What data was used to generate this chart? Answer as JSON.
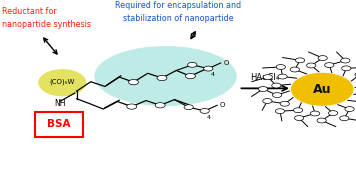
{
  "bg_color": "#ffffff",
  "red_label_line1": "Reductant for",
  "red_label_line2": "nanopartide synthesis",
  "blue_label_line1": "Required for encapsulation and",
  "blue_label_line2": "stabilization of nanopartide",
  "co5w_label": "(CO)₅W",
  "nh_label": "NH",
  "bsa_label": "BSA",
  "hauCl4_label": "HAuCl₄",
  "au_label": "Au",
  "red_color": "#ff2200",
  "blue_color": "#1155cc",
  "teal_ellipse_color": "#80d8d0",
  "yellow_ellipse_color": "#e0e050",
  "bsa_box_color": "#ff0000",
  "gold_circle_color": "#f0c000",
  "arrow_color": "#000000",
  "figw": 3.56,
  "figh": 1.89,
  "dpi": 100
}
